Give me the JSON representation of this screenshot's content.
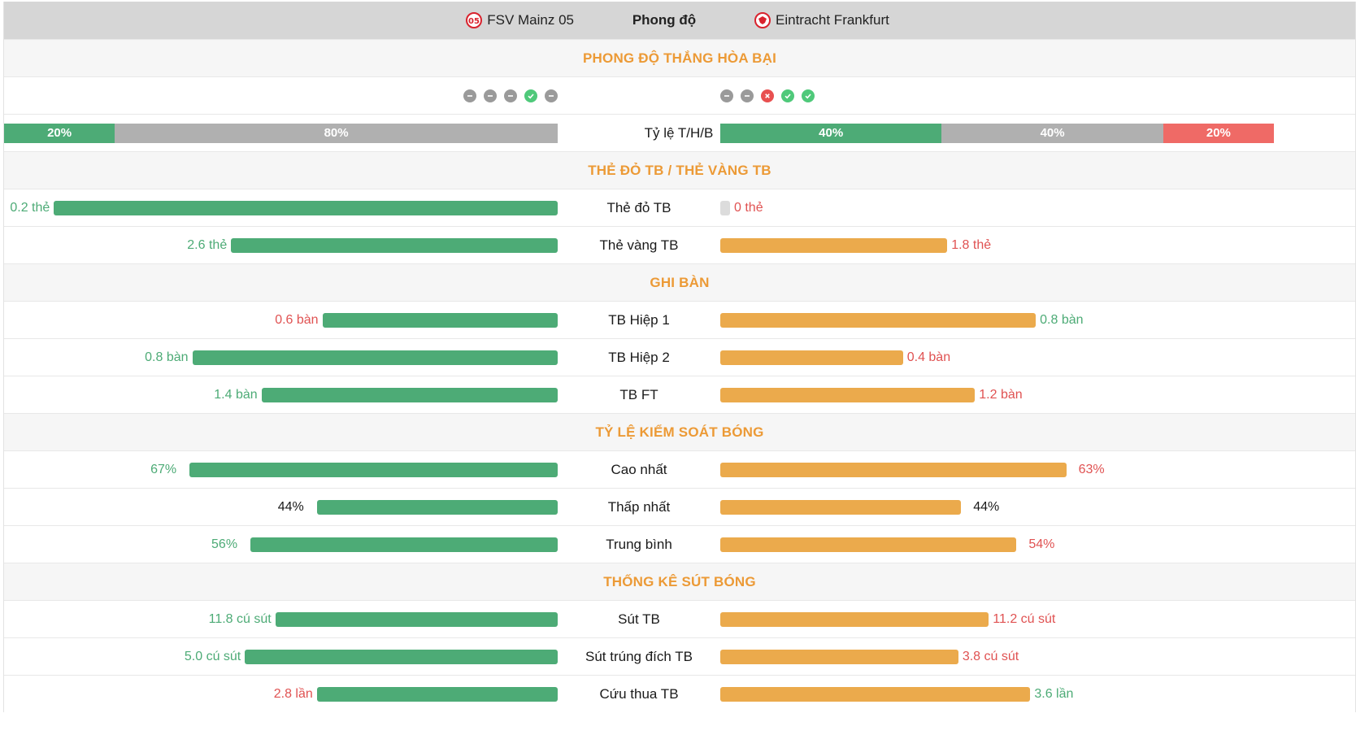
{
  "header": {
    "home_team": "FSV Mainz 05",
    "middle": "Phong độ",
    "away_team": "Eintracht Frankfurt",
    "home_crest_icon": "mainz-crest-icon",
    "away_crest_icon": "frankfurt-eagle-crest-icon"
  },
  "form": {
    "title": "PHONG ĐỘ THẮNG HÒA BẠI",
    "home_results": [
      "D",
      "D",
      "D",
      "W",
      "D"
    ],
    "away_results": [
      "D",
      "D",
      "L",
      "W",
      "W"
    ],
    "ratio_label": "Tỷ lệ T/H/B",
    "home_ratio": [
      {
        "type": "w",
        "label": "20%",
        "value": 20
      },
      {
        "type": "d",
        "label": "80%",
        "value": 80
      }
    ],
    "away_ratio": [
      {
        "type": "w",
        "label": "40%",
        "value": 40
      },
      {
        "type": "d",
        "label": "40%",
        "value": 40
      },
      {
        "type": "l",
        "label": "20%",
        "value": 20
      }
    ]
  },
  "sections": [
    {
      "title": "THẺ ĐỎ TB / THẺ VÀNG TB",
      "rows": [
        {
          "label": "Thẻ đỏ TB",
          "home": {
            "text": "0.2 thẻ",
            "pct": 91,
            "color": "green"
          },
          "away": {
            "text": "0 thẻ",
            "pct": 0,
            "color": "red"
          }
        },
        {
          "label": "Thẻ vàng TB",
          "home": {
            "text": "2.6 thẻ",
            "pct": 59,
            "color": "green"
          },
          "away": {
            "text": "1.8 thẻ",
            "pct": 41,
            "color": "red"
          }
        }
      ]
    },
    {
      "title": "GHI BÀN",
      "rows": [
        {
          "label": "TB Hiệp 1",
          "home": {
            "text": "0.6 bàn",
            "pct": 42.5,
            "color": "red"
          },
          "away": {
            "text": "0.8 bàn",
            "pct": 57,
            "color": "green"
          }
        },
        {
          "label": "TB Hiệp 2",
          "home": {
            "text": "0.8 bàn",
            "pct": 66,
            "color": "green"
          },
          "away": {
            "text": "0.4 bàn",
            "pct": 33,
            "color": "red"
          }
        },
        {
          "label": "TB FT",
          "home": {
            "text": "1.4 bàn",
            "pct": 53.5,
            "color": "green"
          },
          "away": {
            "text": "1.2 bàn",
            "pct": 46,
            "color": "red"
          }
        }
      ]
    },
    {
      "title": "TỶ LỆ KIỂM SOÁT BÓNG",
      "rows": [
        {
          "label": "Cao nhất",
          "home": {
            "text": "67%",
            "pct": 66.5,
            "color": "green"
          },
          "away": {
            "text": "63%",
            "pct": 62.5,
            "color": "red"
          }
        },
        {
          "label": "Thấp nhất",
          "home": {
            "text": "44%",
            "pct": 43.5,
            "color": "dark"
          },
          "away": {
            "text": "44%",
            "pct": 43.5,
            "color": "dark"
          }
        },
        {
          "label": "Trung bình",
          "home": {
            "text": "56%",
            "pct": 55.5,
            "color": "green"
          },
          "away": {
            "text": "54%",
            "pct": 53.5,
            "color": "red"
          }
        }
      ]
    },
    {
      "title": "THỐNG KÊ SÚT BÓNG",
      "rows": [
        {
          "label": "Sút TB",
          "home": {
            "text": "11.8 cú sút",
            "pct": 51,
            "color": "green"
          },
          "away": {
            "text": "11.2 cú sút",
            "pct": 48.5,
            "color": "red"
          }
        },
        {
          "label": "Sút trúng đích TB",
          "home": {
            "text": "5.0 cú sút",
            "pct": 56.5,
            "color": "green"
          },
          "away": {
            "text": "3.8 cú sút",
            "pct": 43,
            "color": "red"
          }
        },
        {
          "label": "Cứu thua TB",
          "home": {
            "text": "2.8 lần",
            "pct": 43.5,
            "color": "red"
          },
          "away": {
            "text": "3.6 lần",
            "pct": 56,
            "color": "green"
          }
        }
      ]
    }
  ]
}
